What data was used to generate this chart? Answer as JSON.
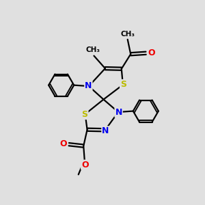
{
  "bg_color": "#e0e0e0",
  "atom_colors": {
    "C": "#000000",
    "N": "#0000ee",
    "O": "#ee0000",
    "S": "#bbbb00"
  },
  "bond_color": "#000000",
  "bond_width": 1.6,
  "dbo": 0.07,
  "figsize": [
    3.0,
    3.0
  ],
  "dpi": 100
}
